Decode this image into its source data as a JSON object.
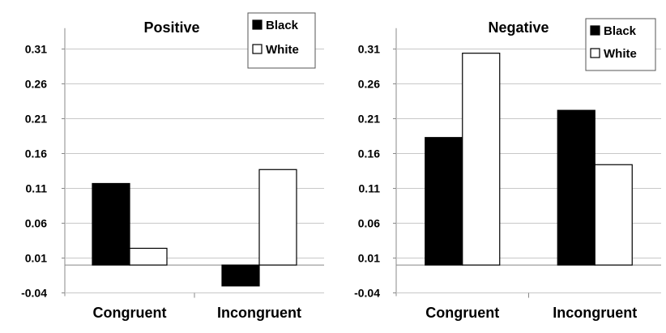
{
  "chart_data": [
    {
      "type": "bar",
      "title": "Positive",
      "categories": [
        "Congruent",
        "Incongruent"
      ],
      "series": [
        {
          "name": "Black",
          "color": "#000000",
          "values": [
            0.117,
            -0.03
          ]
        },
        {
          "name": "White",
          "color": "#ffffff",
          "values": [
            0.024,
            0.137
          ]
        }
      ],
      "yticks": [
        "0.31",
        "0.26",
        "0.21",
        "0.16",
        "0.11",
        "0.06",
        "0.01",
        "-0.04"
      ],
      "ylim": [
        -0.04,
        0.34
      ],
      "xlabel": "",
      "ylabel": "",
      "grid": true,
      "legend": "top-right"
    },
    {
      "type": "bar",
      "title": "Negative",
      "categories": [
        "Congruent",
        "Incongruent"
      ],
      "series": [
        {
          "name": "Black",
          "color": "#000000",
          "values": [
            0.183,
            0.222
          ]
        },
        {
          "name": "White",
          "color": "#ffffff",
          "values": [
            0.304,
            0.144
          ]
        }
      ],
      "yticks": [
        "0.31",
        "0.26",
        "0.21",
        "0.16",
        "0.11",
        "0.06",
        "0.01",
        "-0.04"
      ],
      "ylim": [
        -0.04,
        0.34
      ],
      "xlabel": "",
      "ylabel": "",
      "grid": true,
      "legend": "top-right"
    }
  ]
}
